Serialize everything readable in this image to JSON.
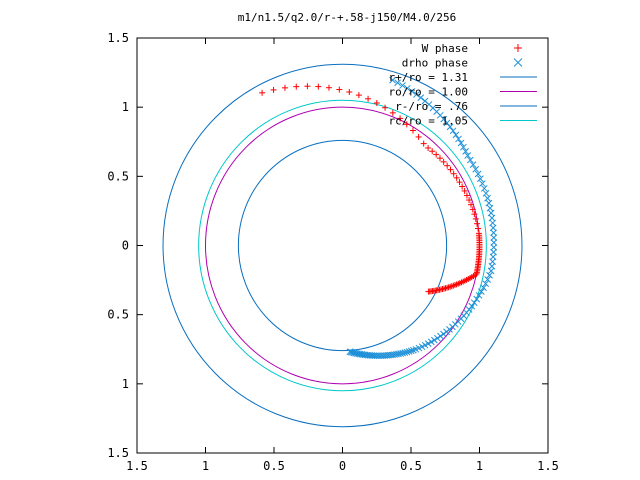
{
  "chart_data": {
    "type": "scatter",
    "title": "m1/n1.5/q2.0/r-+.58-j150/M4.0/256",
    "xlabel": "",
    "ylabel": "",
    "xlim": [
      -1.5,
      1.5
    ],
    "ylim": [
      -1.5,
      1.5
    ],
    "x_ticks": [
      -1.5,
      -1,
      -0.5,
      0,
      0.5,
      1,
      1.5
    ],
    "y_ticks": [
      -1.5,
      -1,
      -0.5,
      0,
      0.5,
      1,
      1.5
    ],
    "x_tick_labels": [
      "1.5",
      "1",
      "0.5",
      "0",
      "0.5",
      "1",
      "1.5"
    ],
    "y_tick_labels": [
      "1.5",
      "1",
      "0.5",
      "0",
      "0.5",
      "1",
      "1.5"
    ],
    "grid": false,
    "legend_position": "top-right",
    "series": [
      {
        "name": "W phase",
        "kind": "points",
        "marker": "+",
        "color": "#ff0000",
        "spiral": {
          "t_start": 0.0,
          "t_end": 1.0,
          "n": 95,
          "r": [
            0.71,
            1.0,
            1.0,
            0.94,
            1.25
          ],
          "theta_deg": [
            -28,
            -12,
            5,
            50,
            118
          ]
        }
      },
      {
        "name": "drho phase",
        "kind": "points",
        "marker": "x",
        "color": "#1e90d8",
        "spiral": {
          "t_start": 0.0,
          "t_end": 1.0,
          "n": 110,
          "r": [
            0.77,
            0.92,
            1.1,
            1.12,
            1.25
          ],
          "theta_deg": [
            -86,
            -55,
            -10,
            35,
            73
          ]
        }
      },
      {
        "name": "r+/ro = 1.31",
        "kind": "circle",
        "radius": 1.31,
        "color": "#0a6fbf"
      },
      {
        "name": "ro/ro = 1.00",
        "kind": "circle",
        "radius": 1.0,
        "color": "#b000b0"
      },
      {
        "name": "r-/ro = .76",
        "kind": "circle",
        "radius": 0.76,
        "color": "#0a6fbf"
      },
      {
        "name": "rc/ro = 1.05",
        "kind": "circle",
        "radius": 1.05,
        "color": "#00c8c8"
      }
    ]
  }
}
